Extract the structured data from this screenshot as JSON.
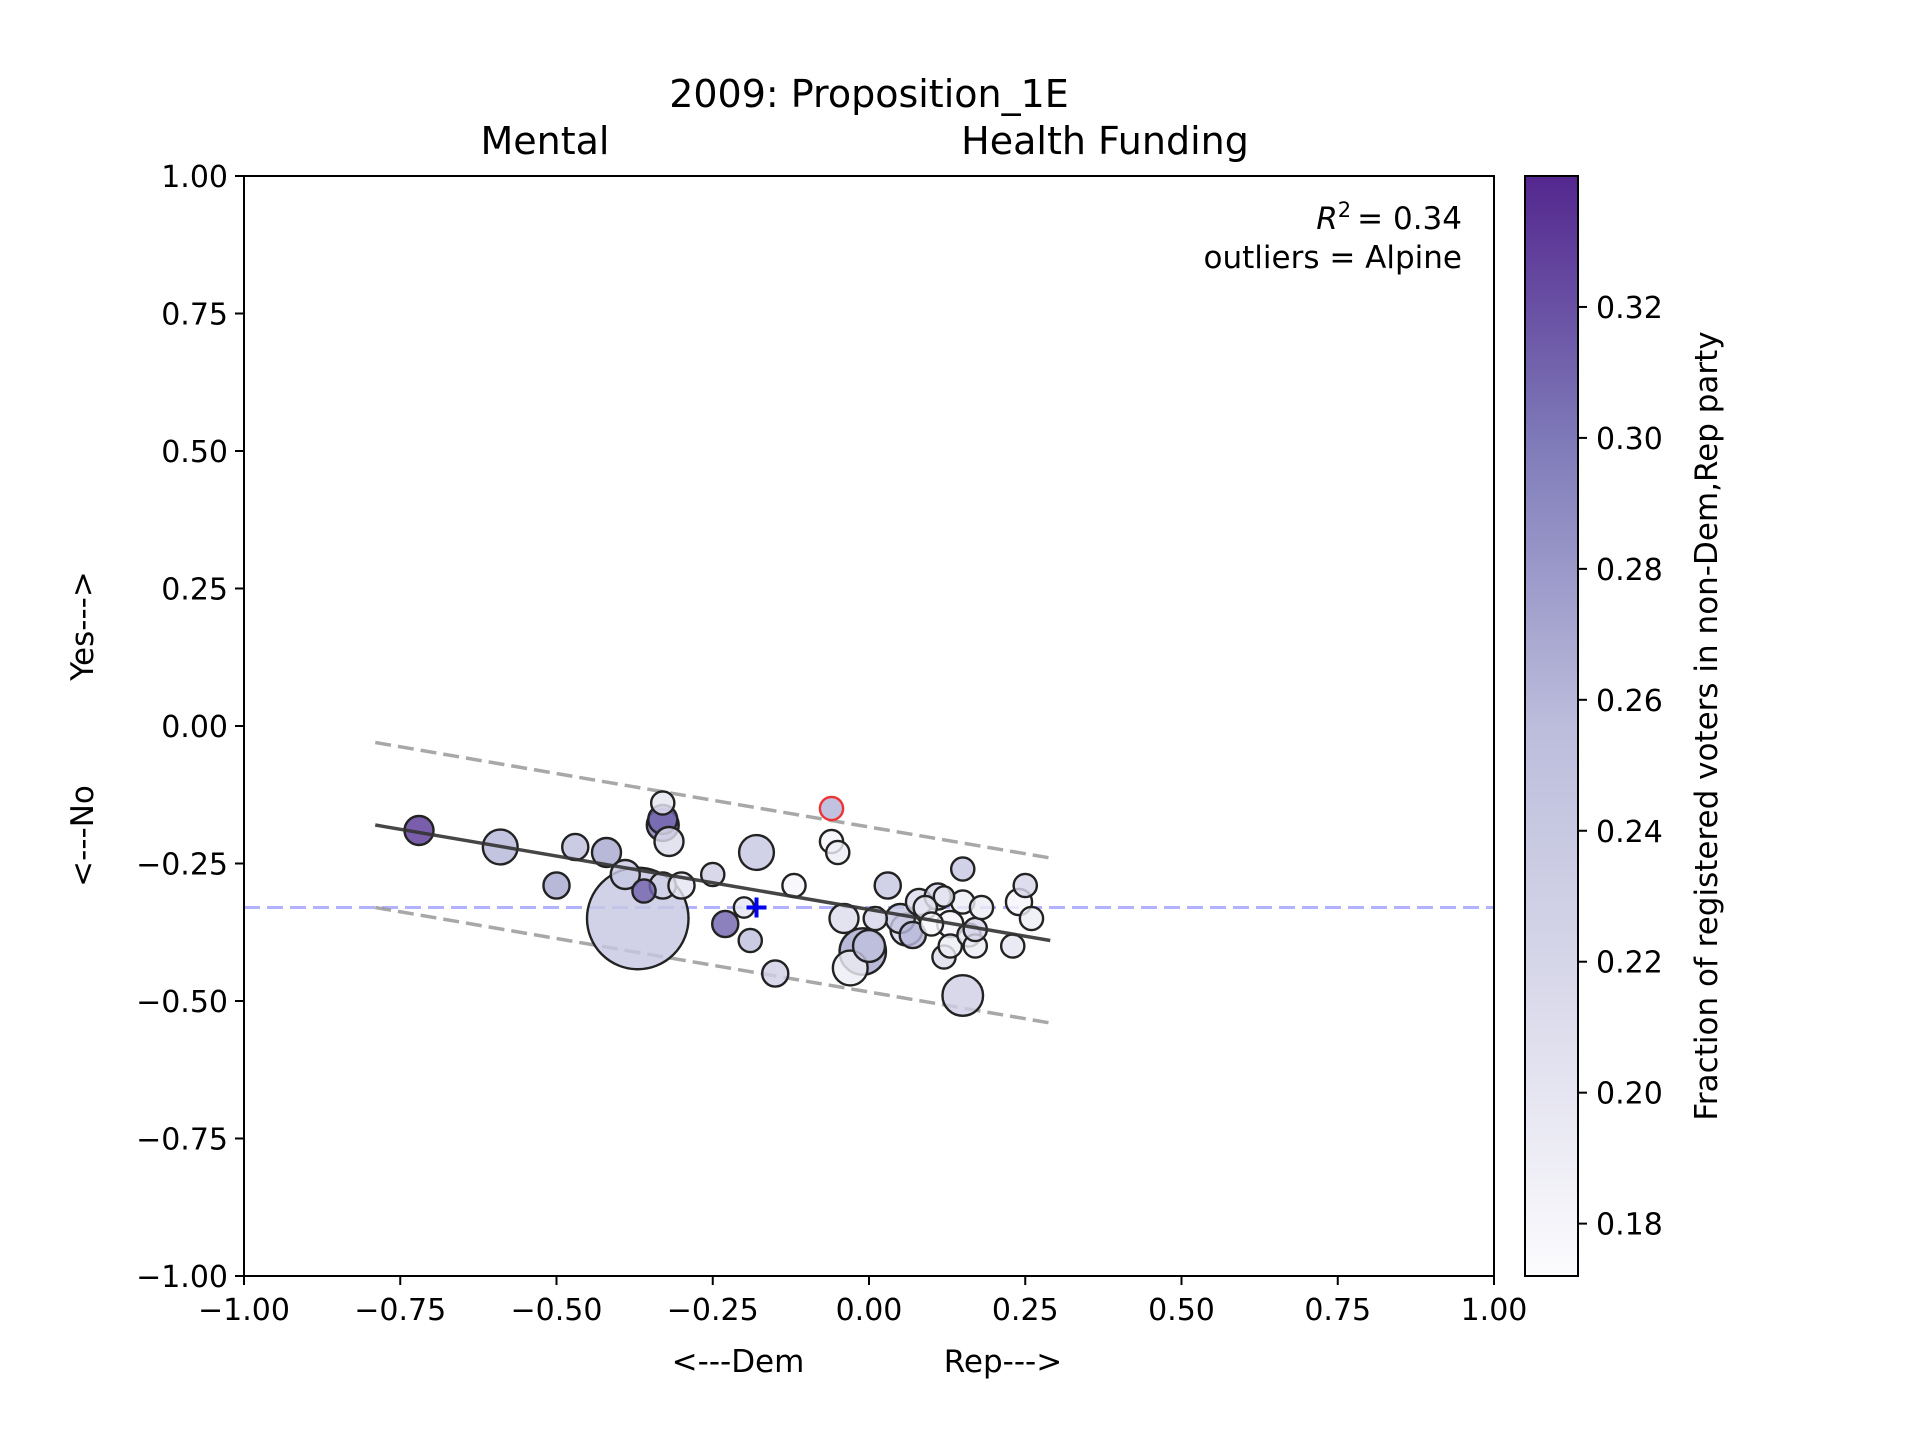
{
  "chart_data": {
    "type": "scatter",
    "title_line1": "2009: Proposition_1E",
    "title_line2_left": "Mental",
    "title_line2_right": "Health Funding",
    "xlabel_left": "<---Dem",
    "xlabel_right": "Rep--->",
    "ylabel_left": "<---No",
    "ylabel_right": "Yes--->",
    "xlim": [
      -1.0,
      1.0
    ],
    "ylim": [
      -1.0,
      1.0
    ],
    "xticks": [
      -1.0,
      -0.75,
      -0.5,
      -0.25,
      0.0,
      0.25,
      0.5,
      0.75,
      1.0
    ],
    "yticks": [
      -1.0,
      -0.75,
      -0.5,
      -0.25,
      0.0,
      0.25,
      0.5,
      0.75,
      1.0
    ],
    "xtick_labels": [
      "−1.00",
      "−0.75",
      "−0.50",
      "−0.25",
      "0.00",
      "0.25",
      "0.50",
      "0.75",
      "1.00"
    ],
    "ytick_labels": [
      "−1.00",
      "−0.75",
      "−0.50",
      "−0.25",
      "0.00",
      "0.25",
      "0.50",
      "0.75",
      "1.00"
    ],
    "annotation_r2_symbol": "R",
    "annotation_r2_exp": "2",
    "annotation_r2_value": "= 0.34",
    "annotation_outliers": "outliers = Alpine",
    "colorbar": {
      "label": "Fraction of registered voters in non-Dem,Rep party",
      "range": [
        0.172,
        0.34
      ],
      "ticks": [
        0.18,
        0.2,
        0.22,
        0.24,
        0.26,
        0.28,
        0.3,
        0.32
      ],
      "tick_labels": [
        "0.18",
        "0.20",
        "0.22",
        "0.24",
        "0.26",
        "0.28",
        "0.30",
        "0.32"
      ],
      "color_low": "#fcfbfd",
      "color_high": "#54278f"
    },
    "fit_line": {
      "x": [
        -0.79,
        0.29
      ],
      "y": [
        -0.18,
        -0.39
      ]
    },
    "upper_band": {
      "x": [
        -0.79,
        0.29
      ],
      "y": [
        -0.03,
        -0.24
      ]
    },
    "lower_band": {
      "x": [
        -0.79,
        0.29
      ],
      "y": [
        -0.33,
        -0.54
      ]
    },
    "hline_y": -0.33,
    "mean_marker": {
      "x": -0.18,
      "y": -0.33
    },
    "outlier_point": {
      "x": -0.06,
      "y": -0.15,
      "v": 0.26,
      "s": 8
    },
    "points": [
      {
        "x": -0.72,
        "y": -0.19,
        "v": 0.33,
        "s": 10
      },
      {
        "x": -0.59,
        "y": -0.22,
        "v": 0.26,
        "s": 12
      },
      {
        "x": -0.5,
        "y": -0.29,
        "v": 0.27,
        "s": 9
      },
      {
        "x": -0.47,
        "y": -0.22,
        "v": 0.25,
        "s": 9
      },
      {
        "x": -0.42,
        "y": -0.23,
        "v": 0.27,
        "s": 10
      },
      {
        "x": -0.39,
        "y": -0.27,
        "v": 0.24,
        "s": 10
      },
      {
        "x": -0.37,
        "y": -0.35,
        "v": 0.24,
        "s": 35
      },
      {
        "x": -0.36,
        "y": -0.3,
        "v": 0.31,
        "s": 8
      },
      {
        "x": -0.33,
        "y": -0.29,
        "v": 0.23,
        "s": 9
      },
      {
        "x": -0.33,
        "y": -0.14,
        "v": 0.2,
        "s": 8
      },
      {
        "x": -0.33,
        "y": -0.18,
        "v": 0.3,
        "s": 11
      },
      {
        "x": -0.33,
        "y": -0.17,
        "v": 0.31,
        "s": 10
      },
      {
        "x": -0.32,
        "y": -0.21,
        "v": 0.21,
        "s": 10
      },
      {
        "x": -0.3,
        "y": -0.29,
        "v": 0.2,
        "s": 9
      },
      {
        "x": -0.25,
        "y": -0.27,
        "v": 0.23,
        "s": 8
      },
      {
        "x": -0.23,
        "y": -0.36,
        "v": 0.31,
        "s": 9
      },
      {
        "x": -0.2,
        "y": -0.33,
        "v": 0.2,
        "s": 7
      },
      {
        "x": -0.19,
        "y": -0.39,
        "v": 0.25,
        "s": 8
      },
      {
        "x": -0.18,
        "y": -0.23,
        "v": 0.24,
        "s": 12
      },
      {
        "x": -0.15,
        "y": -0.45,
        "v": 0.23,
        "s": 9
      },
      {
        "x": -0.12,
        "y": -0.29,
        "v": 0.18,
        "s": 8
      },
      {
        "x": -0.06,
        "y": -0.21,
        "v": 0.18,
        "s": 8
      },
      {
        "x": -0.05,
        "y": -0.23,
        "v": 0.19,
        "s": 8
      },
      {
        "x": -0.04,
        "y": -0.35,
        "v": 0.21,
        "s": 10
      },
      {
        "x": -0.03,
        "y": -0.44,
        "v": 0.19,
        "s": 12
      },
      {
        "x": -0.01,
        "y": -0.41,
        "v": 0.27,
        "s": 16
      },
      {
        "x": 0.0,
        "y": -0.4,
        "v": 0.25,
        "s": 11
      },
      {
        "x": 0.01,
        "y": -0.35,
        "v": 0.22,
        "s": 8
      },
      {
        "x": 0.03,
        "y": -0.29,
        "v": 0.24,
        "s": 9
      },
      {
        "x": 0.05,
        "y": -0.35,
        "v": 0.24,
        "s": 10
      },
      {
        "x": 0.06,
        "y": -0.37,
        "v": 0.22,
        "s": 11
      },
      {
        "x": 0.07,
        "y": -0.38,
        "v": 0.26,
        "s": 9
      },
      {
        "x": 0.08,
        "y": -0.32,
        "v": 0.21,
        "s": 9
      },
      {
        "x": 0.09,
        "y": -0.33,
        "v": 0.2,
        "s": 8
      },
      {
        "x": 0.1,
        "y": -0.36,
        "v": 0.18,
        "s": 8
      },
      {
        "x": 0.11,
        "y": -0.31,
        "v": 0.22,
        "s": 9
      },
      {
        "x": 0.12,
        "y": -0.31,
        "v": 0.2,
        "s": 7
      },
      {
        "x": 0.12,
        "y": -0.42,
        "v": 0.21,
        "s": 8
      },
      {
        "x": 0.13,
        "y": -0.36,
        "v": 0.18,
        "s": 9
      },
      {
        "x": 0.13,
        "y": -0.4,
        "v": 0.19,
        "s": 8
      },
      {
        "x": 0.15,
        "y": -0.32,
        "v": 0.19,
        "s": 8
      },
      {
        "x": 0.15,
        "y": -0.26,
        "v": 0.24,
        "s": 8
      },
      {
        "x": 0.15,
        "y": -0.49,
        "v": 0.23,
        "s": 14
      },
      {
        "x": 0.16,
        "y": -0.38,
        "v": 0.2,
        "s": 8
      },
      {
        "x": 0.17,
        "y": -0.4,
        "v": 0.19,
        "s": 8
      },
      {
        "x": 0.17,
        "y": -0.37,
        "v": 0.22,
        "s": 8
      },
      {
        "x": 0.18,
        "y": -0.33,
        "v": 0.19,
        "s": 8
      },
      {
        "x": 0.23,
        "y": -0.4,
        "v": 0.2,
        "s": 8
      },
      {
        "x": 0.24,
        "y": -0.32,
        "v": 0.18,
        "s": 9
      },
      {
        "x": 0.25,
        "y": -0.29,
        "v": 0.22,
        "s": 8
      },
      {
        "x": 0.26,
        "y": -0.35,
        "v": 0.19,
        "s": 8
      }
    ]
  }
}
